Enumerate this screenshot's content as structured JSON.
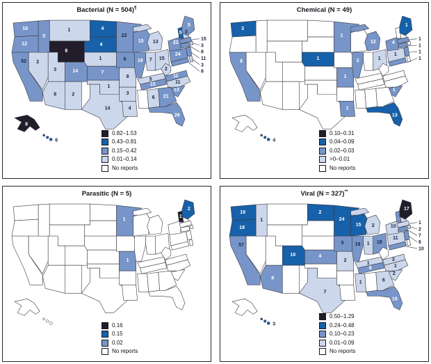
{
  "colors": {
    "l0": "#ffffff",
    "l1": "#ccd7eb",
    "l2": "#7795c8",
    "l3": "#1661a9",
    "l4": "#211d2a",
    "stroke": "#3a3a44",
    "leader": "#3a3a44",
    "text_dark": "#1c2340",
    "text_light": "#ffffff"
  },
  "panels": [
    {
      "id": "bacterial",
      "title_main": "Bacterial (N = 504)",
      "title_sup": "¶",
      "legend": [
        {
          "label": "0.82–1.53",
          "level": "l4"
        },
        {
          "label": "0.43–0.81",
          "level": "l3"
        },
        {
          "label": "0.15–0.42",
          "level": "l2"
        },
        {
          "label": "0.01–0.14",
          "level": "l1"
        },
        {
          "label": "No reports",
          "level": "l0"
        }
      ],
      "states": {
        "WA": {
          "v": 18,
          "level": "l2",
          "tw": true
        },
        "OR": {
          "v": 12,
          "level": "l2",
          "tw": true
        },
        "CA": {
          "v": 52,
          "level": "l2"
        },
        "NV": {
          "v": 2,
          "level": "l1"
        },
        "ID": {
          "v": 5,
          "level": "l2",
          "tw": true
        },
        "MT": {
          "v": 1,
          "level": "l1"
        },
        "WY": {
          "v": 8,
          "level": "l4",
          "tw": true
        },
        "UT": {
          "v": 3,
          "level": "l1"
        },
        "CO": {
          "v": 14,
          "level": "l2",
          "tw": true
        },
        "AZ": {
          "v": 8,
          "level": "l1"
        },
        "NM": {
          "v": 2,
          "level": "l1"
        },
        "ND": {
          "v": 4,
          "level": "l3",
          "tw": true
        },
        "SD": {
          "v": 4,
          "level": "l3",
          "tw": true
        },
        "NE": {
          "v": 1,
          "level": "l1"
        },
        "KS": {
          "v": 7,
          "level": "l2",
          "tw": true
        },
        "OK": {
          "v": 1,
          "level": "l1"
        },
        "TX": {
          "v": 14,
          "level": "l1"
        },
        "MN": {
          "v": 22,
          "level": "l2"
        },
        "IA": {
          "v": 6,
          "level": "l2"
        },
        "MO": {
          "v": 8,
          "level": "l1"
        },
        "AR": {
          "v": 3,
          "level": "l1"
        },
        "LA": {
          "v": 4,
          "level": "l1"
        },
        "WI": {
          "v": 15,
          "level": "l2",
          "tw": true
        },
        "IL": {
          "v": 19,
          "level": "l2",
          "tw": true
        },
        "IN": {
          "v": 7,
          "level": "l1"
        },
        "MI": {
          "v": 13,
          "level": "l1"
        },
        "OH": {
          "v": 15,
          "level": "l1"
        },
        "KY": {
          "v": 5,
          "level": "l1"
        },
        "TN": {
          "v": 15,
          "level": "l2",
          "tw": true
        },
        "AL": {
          "v": 6,
          "level": "l1"
        },
        "GA": {
          "v": 21,
          "level": "l2",
          "tw": true
        },
        "FL": {
          "v": 26,
          "level": "l2",
          "tw": true
        },
        "SC": {
          "v": 13,
          "level": "l2",
          "tw": true
        },
        "NC": {
          "v": 11,
          "level": "l1"
        },
        "VA": {
          "v": 11,
          "level": "l2",
          "tw": true
        },
        "WV": {
          "v": 2,
          "level": "l1"
        },
        "PA": {
          "v": 24,
          "level": "l2",
          "tw": true
        },
        "NY": {
          "v": 22,
          "level": "l2",
          "tw": true
        },
        "NJ": {
          "level": "l2"
        },
        "DE": {
          "level": "l1"
        },
        "MD": {
          "level": "l2"
        },
        "CT": {
          "level": "l2"
        },
        "RI": {
          "level": "l1"
        },
        "MA": {
          "level": "l2"
        },
        "VT": {
          "v": 5,
          "level": "l3",
          "tw": true
        },
        "NH": {
          "v": 3,
          "level": "l1"
        },
        "ME": {
          "v": 5,
          "level": "l2",
          "tw": true
        },
        "AK": {
          "v": 8,
          "level": "l4",
          "tw": true
        },
        "HI": {
          "v": 6,
          "level": "l3"
        }
      },
      "callouts": [
        {
          "state": "MA",
          "v": 15
        },
        {
          "state": "RI",
          "v": 3
        },
        {
          "state": "CT",
          "v": 8
        },
        {
          "state": "NJ",
          "v": 11
        },
        {
          "state": "DE",
          "v": 3
        },
        {
          "state": "MD",
          "v": 8
        }
      ]
    },
    {
      "id": "chemical",
      "title_main": "Chemical (N = 49)",
      "title_sup": "",
      "legend": [
        {
          "label": "0.10–0.31",
          "level": "l4"
        },
        {
          "label": "0.04–0.09",
          "level": "l3"
        },
        {
          "label": "0.02–0.03",
          "level": "l2"
        },
        {
          "label": ">0–0.01",
          "level": "l1"
        },
        {
          "label": "No reports",
          "level": "l0"
        }
      ],
      "states": {
        "WA": {
          "v": 3,
          "level": "l3",
          "tw": true
        },
        "CA": {
          "v": 8,
          "level": "l2",
          "tw": true
        },
        "NE": {
          "v": 1,
          "level": "l3",
          "tw": true
        },
        "MN": {
          "v": 1,
          "level": "l2",
          "tw": true
        },
        "MO": {
          "v": 1,
          "level": "l2",
          "tw": true
        },
        "IL": {
          "v": 2,
          "level": "l2",
          "tw": true
        },
        "MI": {
          "v": 12,
          "level": "l2",
          "tw": true
        },
        "OH": {
          "v": 1,
          "level": "l1"
        },
        "PA": {
          "v": 1,
          "level": "l1"
        },
        "NY": {
          "v": 4,
          "level": "l2",
          "tw": true
        },
        "LA": {
          "v": 1,
          "level": "l2",
          "tw": true
        },
        "SC": {
          "v": 1,
          "level": "l2",
          "tw": true
        },
        "FL": {
          "v": 13,
          "level": "l3",
          "tw": true
        },
        "ME": {
          "v": 1,
          "level": "l3",
          "tw": true
        },
        "HI": {
          "v": 4,
          "level": "l3"
        },
        "MA": {
          "level": "l2"
        },
        "CT": {
          "level": "l2"
        },
        "NJ": {
          "level": "l2"
        },
        "MD": {
          "level": "l2"
        }
      },
      "callouts": [
        {
          "state": "MA",
          "v": 1
        },
        {
          "state": "CT",
          "v": 1
        },
        {
          "state": "NJ",
          "v": 1
        },
        {
          "state": "MD",
          "v": 1
        }
      ]
    },
    {
      "id": "parasitic",
      "title_main": "Parasitic (N = 5)",
      "title_sup": "",
      "legend": [
        {
          "label": "0.16",
          "level": "l4"
        },
        {
          "label": "0.15",
          "level": "l3"
        },
        {
          "label": "0.02",
          "level": "l2"
        },
        {
          "label": "No reports",
          "level": "l0"
        }
      ],
      "states": {
        "MN": {
          "v": 1,
          "level": "l2",
          "tw": true
        },
        "MO": {
          "v": 1,
          "level": "l2",
          "tw": true
        },
        "ME": {
          "v": 2,
          "level": "l3",
          "tw": true
        },
        "VT": {
          "v": 1,
          "level": "l4",
          "tw": true
        }
      },
      "callouts": []
    },
    {
      "id": "viral",
      "title_main": "Viral (N = 327)",
      "title_sup": "**",
      "legend": [
        {
          "label": "0.50–1.29",
          "level": "l4"
        },
        {
          "label": "0.24–0.48",
          "level": "l3"
        },
        {
          "label": "0.10–0.23",
          "level": "l2"
        },
        {
          "label": "0.01–0.09",
          "level": "l1"
        },
        {
          "label": "No reports",
          "level": "l0"
        }
      ],
      "states": {
        "WA": {
          "v": 19,
          "level": "l3",
          "tw": true
        },
        "OR": {
          "v": 18,
          "level": "l3",
          "tw": true
        },
        "ID": {
          "v": 1,
          "level": "l1"
        },
        "CA": {
          "v": 57,
          "level": "l2"
        },
        "AZ": {
          "v": 8,
          "level": "l2",
          "tw": true
        },
        "ND": {
          "v": 2,
          "level": "l3",
          "tw": true
        },
        "MN": {
          "v": 24,
          "level": "l3",
          "tw": true
        },
        "WI": {
          "v": 15,
          "level": "l3",
          "tw": true
        },
        "MI": {
          "v": 2,
          "level": "l1"
        },
        "CO": {
          "v": 16,
          "level": "l3",
          "tw": true
        },
        "KS": {
          "v": 4,
          "level": "l2",
          "tw": true
        },
        "MO": {
          "v": 2,
          "level": "l1"
        },
        "IA": {
          "v": 5,
          "level": "l2"
        },
        "IL": {
          "v": 19,
          "level": "l2"
        },
        "IN": {
          "v": 1,
          "level": "l1"
        },
        "OH": {
          "v": 18,
          "level": "l2"
        },
        "KY": {
          "v": 1,
          "level": "l1"
        },
        "TN": {
          "v": 8,
          "level": "l2",
          "tw": true
        },
        "MS": {
          "v": 1,
          "level": "l1"
        },
        "TX": {
          "v": 7,
          "level": "l1"
        },
        "GA": {
          "v": 6,
          "level": "l1"
        },
        "SC": {
          "v": 2,
          "level": "l1"
        },
        "NC": {
          "v": 1,
          "level": "l1"
        },
        "FL": {
          "v": 18,
          "level": "l2",
          "tw": true
        },
        "VA": {
          "v": 3,
          "level": "l1"
        },
        "PA": {
          "v": 11,
          "level": "l1"
        },
        "NY": {
          "v": 10,
          "level": "l1"
        },
        "ME": {
          "v": 17,
          "level": "l4",
          "tw": true
        },
        "VT": {
          "level": "l2"
        },
        "NH": {
          "v": 1,
          "level": "l1"
        },
        "MA": {
          "level": "l1"
        },
        "RI": {
          "level": "l1"
        },
        "CT": {
          "level": "l2"
        },
        "NJ": {
          "level": "l2"
        },
        "MD": {
          "level": "l2"
        },
        "HI": {
          "v": 3,
          "level": "l3"
        }
      },
      "callouts": [
        {
          "state": "MA",
          "v": 1
        },
        {
          "state": "RI",
          "v": 2
        },
        {
          "state": "CT",
          "v": 7
        },
        {
          "state": "NJ",
          "v": 6
        },
        {
          "state": "MD",
          "v": 10
        }
      ]
    }
  ]
}
